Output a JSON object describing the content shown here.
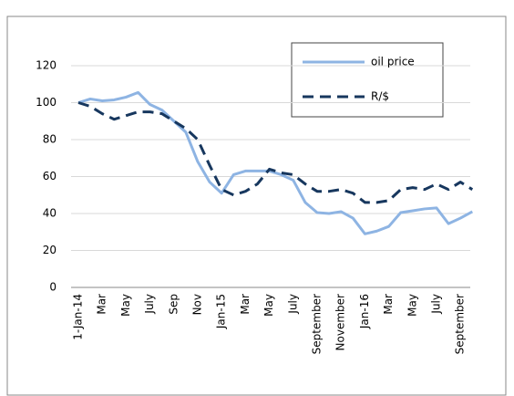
{
  "chart_data": {
    "type": "line",
    "categories": [
      "1-Jan-14",
      null,
      "Mar",
      null,
      "May",
      null,
      "July",
      null,
      "Sep",
      null,
      "Nov",
      null,
      "Jan-15",
      null,
      "Mar",
      null,
      "May",
      null,
      "July",
      null,
      "September",
      null,
      "November",
      null,
      "Jan-16",
      null,
      "Mar",
      null,
      "May",
      null,
      "July",
      null,
      "September",
      null
    ],
    "series": [
      {
        "name": "oil price",
        "color": "#8eb4e3",
        "dash": "solid",
        "values": [
          100,
          102,
          101,
          101.5,
          103,
          105.5,
          99,
          96,
          90,
          84,
          68,
          57,
          51,
          61,
          63,
          63,
          63,
          61,
          58,
          46,
          40.5,
          40,
          41,
          37.5,
          29,
          30.5,
          33,
          40.5,
          41.5,
          42.5,
          43,
          34.5,
          37.5,
          41
        ]
      },
      {
        "name": "R/$",
        "color": "#17375e",
        "dash": "dashed",
        "values": [
          100,
          98,
          94,
          91,
          93,
          95,
          95,
          94,
          90,
          86,
          80,
          66,
          53,
          50,
          52,
          56,
          64,
          62,
          61,
          56,
          52,
          52,
          53,
          51,
          46,
          46,
          47,
          53,
          54,
          53,
          56,
          53,
          57,
          53
        ]
      }
    ],
    "ylim": [
      0,
      120
    ],
    "yticks": [
      0,
      20,
      40,
      60,
      80,
      100,
      120
    ],
    "grid": true
  }
}
